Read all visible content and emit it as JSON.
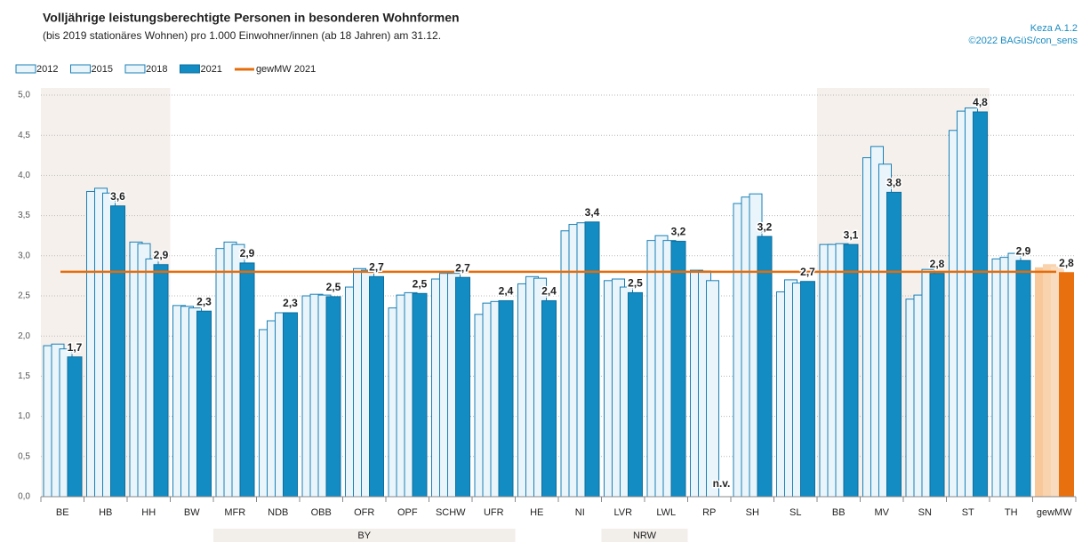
{
  "chart_data": {
    "type": "bar",
    "title": "Volljährige leistungsberechtigte Personen in besonderen Wohnformen",
    "subtitle": "(bis 2019 stationäres Wohnen) pro 1.000 Einwohner/innen (ab 18 Jahren) am 31.12.",
    "source": [
      "Keza A.1.2",
      "©2022 BAGüS/con_sens"
    ],
    "categories": [
      "BE",
      "HB",
      "HH",
      "BW",
      "MFR",
      "NDB",
      "OBB",
      "OFR",
      "OPF",
      "SCHW",
      "UFR",
      "HE",
      "NI",
      "LVR",
      "LWL",
      "RP",
      "SH",
      "SL",
      "BB",
      "MV",
      "SN",
      "ST",
      "TH",
      "gewMW"
    ],
    "series": [
      {
        "name": "2012",
        "color": "#eaf5fb",
        "stroke": "#1a7fb5",
        "highlight_color": "#f9c89a",
        "values": [
          1.88,
          3.8,
          3.17,
          2.38,
          3.09,
          2.08,
          2.5,
          2.61,
          2.35,
          2.71,
          2.27,
          2.65,
          3.31,
          2.69,
          3.19,
          2.82,
          3.65,
          2.55,
          3.14,
          4.22,
          2.46,
          4.56,
          2.96,
          2.85
        ]
      },
      {
        "name": "2015",
        "color": "#eaf5fb",
        "stroke": "#1a7fb5",
        "highlight_color": "#f8d3ae",
        "values": [
          1.9,
          3.84,
          3.15,
          2.37,
          3.17,
          2.19,
          2.52,
          2.84,
          2.51,
          2.78,
          2.41,
          2.74,
          3.39,
          2.71,
          3.25,
          2.81,
          3.73,
          2.7,
          3.14,
          4.36,
          2.51,
          4.8,
          2.98,
          2.89
        ]
      },
      {
        "name": "2018",
        "color": "#eaf5fb",
        "stroke": "#1a7fb5",
        "highlight_color": "#f9dcc0",
        "values": [
          1.84,
          3.78,
          2.96,
          2.35,
          3.14,
          2.29,
          2.51,
          2.82,
          2.54,
          2.78,
          2.43,
          2.72,
          3.41,
          2.61,
          3.19,
          2.69,
          3.77,
          2.66,
          3.15,
          4.14,
          2.83,
          4.84,
          3.03,
          2.86
        ]
      },
      {
        "name": "2021",
        "color": "#138bc3",
        "stroke": "#0d6f9e",
        "highlight_color": "#e8700f",
        "values": [
          1.74,
          3.62,
          2.89,
          2.31,
          2.91,
          2.29,
          2.49,
          2.74,
          2.53,
          2.73,
          2.44,
          2.44,
          3.42,
          2.54,
          3.18,
          null,
          3.24,
          2.68,
          3.14,
          3.79,
          2.78,
          4.79,
          2.94,
          2.79
        ],
        "value_labels": [
          "1,7",
          "3,6",
          "2,9",
          "2,3",
          "2,9",
          "2,3",
          "2,5",
          "2,7",
          "2,5",
          "2,7",
          "2,4",
          "2,4",
          "3,4",
          "2,5",
          "3,2",
          "n.v.",
          "3,2",
          "2,7",
          "3,1",
          "3,8",
          "2,8",
          "4,8",
          "2,9",
          "2,8"
        ]
      }
    ],
    "reference_line": {
      "name": "gewMW 2021",
      "value": 2.8,
      "color": "#e46c0a"
    },
    "shaded_ranges": [
      [
        0,
        2
      ],
      [
        18,
        21
      ]
    ],
    "groups": [
      {
        "label": "BY",
        "range": [
          4,
          10
        ]
      },
      {
        "label": "NRW",
        "range": [
          13,
          14
        ]
      }
    ],
    "ylim": [
      0,
      5
    ],
    "yticks": [
      {
        "value": 0,
        "label": "0,0"
      },
      {
        "value": 0.5,
        "label": "0,5"
      },
      {
        "value": 1,
        "label": "1,0"
      },
      {
        "value": 1.5,
        "label": "1,5"
      },
      {
        "value": 2,
        "label": "2,0"
      },
      {
        "value": 2.5,
        "label": "2,5"
      },
      {
        "value": 3,
        "label": "3,0"
      },
      {
        "value": 3.5,
        "label": "3,5"
      },
      {
        "value": 4,
        "label": "4,0"
      },
      {
        "value": 4.5,
        "label": "4,5"
      },
      {
        "value": 5,
        "label": "5,0"
      }
    ],
    "grid": true
  }
}
